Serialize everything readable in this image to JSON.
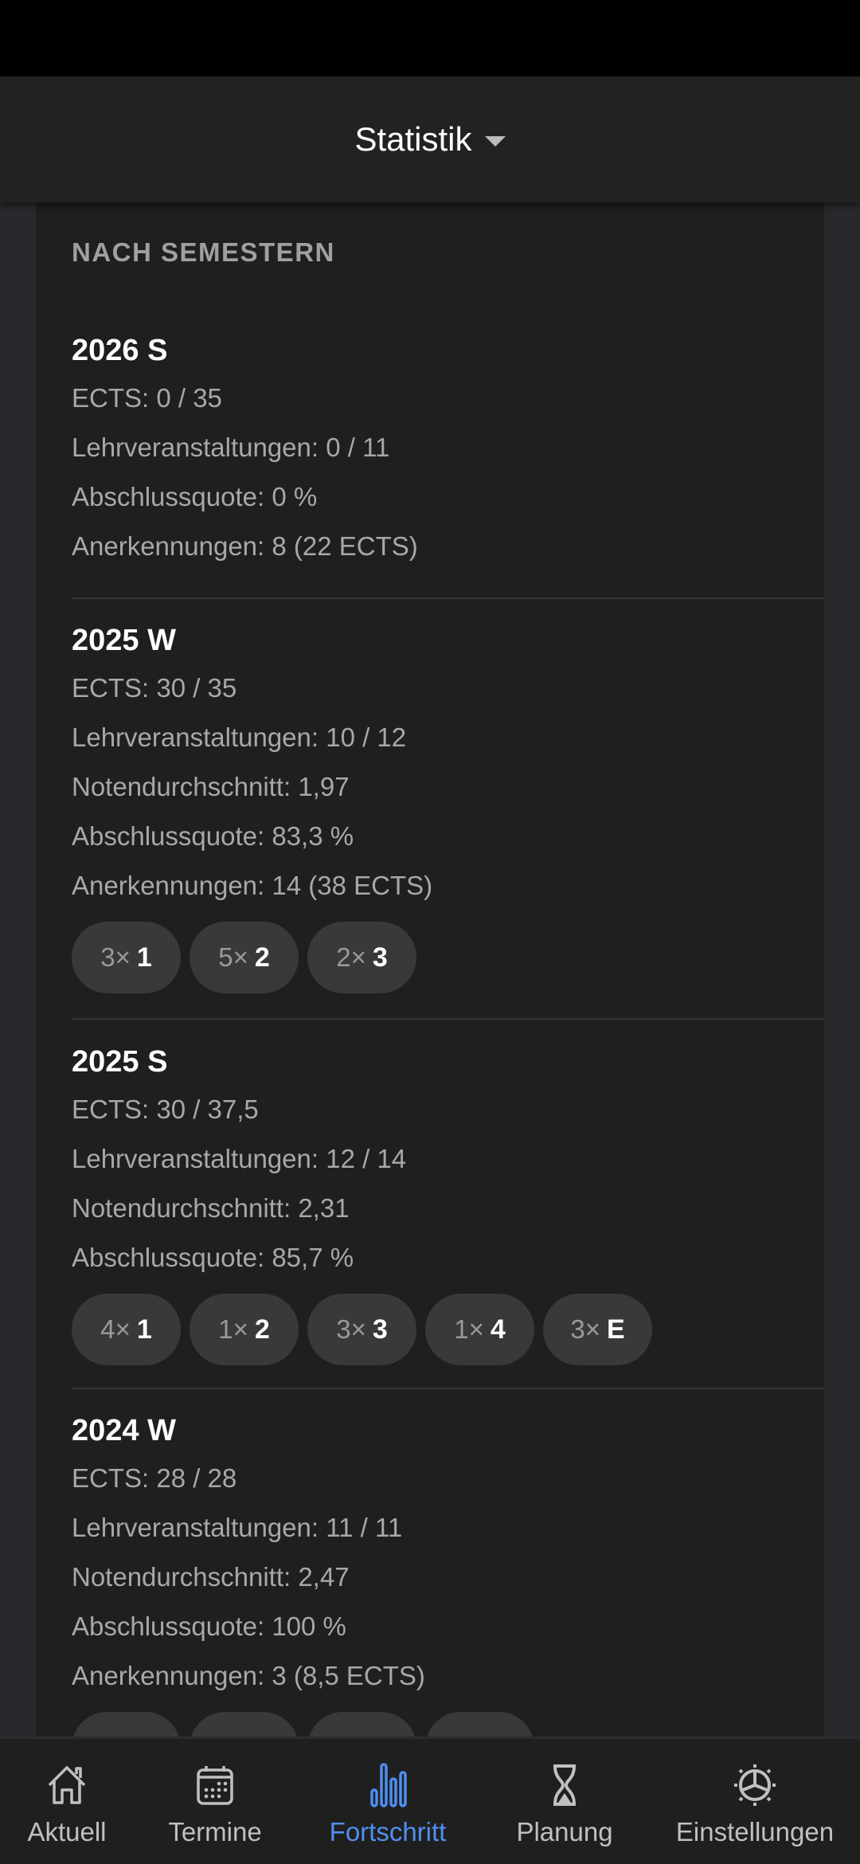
{
  "header": {
    "title": "Statistik"
  },
  "section_title": "NACH SEMESTERN",
  "semesters": [
    {
      "title": "2026 S",
      "lines": [
        "ECTS: 0 / 35",
        "Lehrveranstaltungen: 0 / 11",
        "Abschlussquote: 0 %",
        "Anerkennungen: 8 (22 ECTS)"
      ],
      "grades": []
    },
    {
      "title": "2025 W",
      "lines": [
        "ECTS: 30 / 35",
        "Lehrveranstaltungen: 10 / 12",
        "Notendurchschnitt: 1,97",
        "Abschlussquote: 83,3 %",
        "Anerkennungen: 14 (38 ECTS)"
      ],
      "grades": [
        {
          "count": "3×",
          "grade": "1"
        },
        {
          "count": "5×",
          "grade": "2"
        },
        {
          "count": "2×",
          "grade": "3"
        }
      ]
    },
    {
      "title": "2025 S",
      "lines": [
        "ECTS: 30 / 37,5",
        "Lehrveranstaltungen: 12 / 14",
        "Notendurchschnitt: 2,31",
        "Abschlussquote: 85,7 %"
      ],
      "grades": [
        {
          "count": "4×",
          "grade": "1"
        },
        {
          "count": "1×",
          "grade": "2"
        },
        {
          "count": "3×",
          "grade": "3"
        },
        {
          "count": "1×",
          "grade": "4"
        },
        {
          "count": "3×",
          "grade": "E"
        }
      ]
    },
    {
      "title": "2024 W",
      "lines": [
        "ECTS: 28 / 28",
        "Lehrveranstaltungen: 11 / 11",
        "Notendurchschnitt: 2,47",
        "Abschlussquote: 100 %",
        "Anerkennungen: 3 (8,5 ECTS)"
      ],
      "grades": [
        {
          "count": "",
          "grade": ""
        },
        {
          "count": "",
          "grade": ""
        },
        {
          "count": "",
          "grade": ""
        },
        {
          "count": "",
          "grade": ""
        }
      ]
    }
  ],
  "nav": [
    {
      "label": "Aktuell",
      "icon": "home-icon"
    },
    {
      "label": "Termine",
      "icon": "calendar-icon"
    },
    {
      "label": "Fortschritt",
      "icon": "bar-chart-icon",
      "active": true
    },
    {
      "label": "Planung",
      "icon": "hourglass-icon"
    },
    {
      "label": "Einstellungen",
      "icon": "gear-icon"
    }
  ],
  "colors": {
    "accent": "#4f8ff0",
    "card": "#1f1f1f",
    "chip": "#393939"
  }
}
